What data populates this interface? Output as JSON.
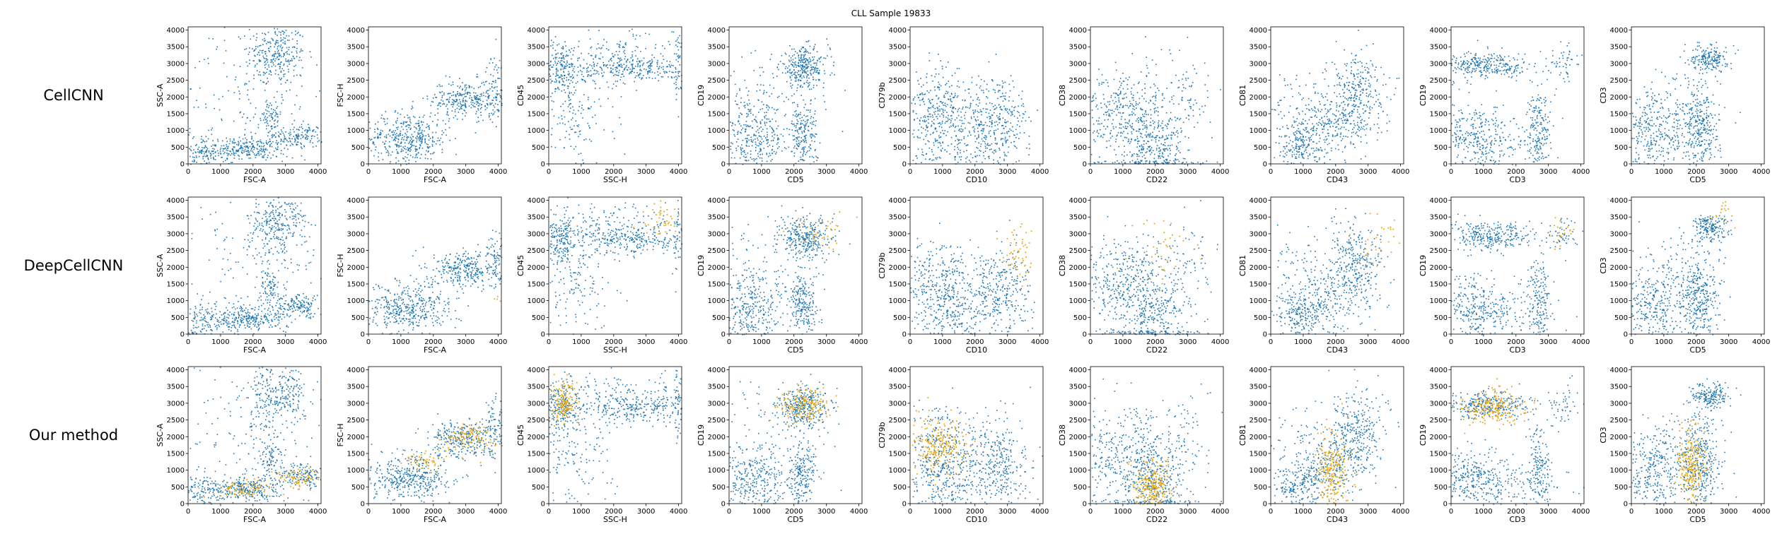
{
  "figure": {
    "title": "CLL Sample 19833",
    "row_labels": [
      "CellCNN",
      "DeepCellCNN",
      "Our method"
    ],
    "colors": {
      "background_cells": "#1f77b4",
      "selected_cells": "#e6a817"
    }
  },
  "chart_data": {
    "type": "scatter",
    "title": "CLL Sample 19833",
    "rows": [
      "CellCNN",
      "DeepCellCNN",
      "Our method"
    ],
    "axis_range": [
      0,
      4096
    ],
    "tick_values": [
      0,
      500,
      1000,
      1500,
      2000,
      2500,
      3000,
      3500,
      4000
    ],
    "x_tick_values": [
      0,
      1000,
      2000,
      3000,
      4000
    ],
    "y_tick_labels": [
      "0",
      "500",
      "1000",
      "1500",
      "2000",
      "2500",
      "3000",
      "3500",
      "4000"
    ],
    "x_tick_labels": [
      "0",
      "1000",
      "2000",
      "3000",
      "4000"
    ],
    "grid": false,
    "panels": [
      {
        "xlabel": "FSC-A",
        "ylabel": "SSC-A",
        "clusters": [
          {
            "x": 2700,
            "y": 3300,
            "sx": 450,
            "sy": 450,
            "n": 260
          },
          {
            "x": 1800,
            "y": 450,
            "sx": 600,
            "sy": 170,
            "n": 260
          },
          {
            "x": 3400,
            "y": 850,
            "sx": 400,
            "sy": 170,
            "n": 150
          },
          {
            "x": 2500,
            "y": 1350,
            "sx": 180,
            "sy": 300,
            "n": 70
          },
          {
            "x": 400,
            "y": 350,
            "sx": 350,
            "sy": 300,
            "n": 130
          },
          {
            "x": 2000,
            "y": 2200,
            "sx": 1100,
            "sy": 1100,
            "n": 160
          }
        ],
        "selected": [
          {
            "row": 2,
            "x": 1700,
            "y": 480,
            "sx": 450,
            "sy": 120,
            "n": 90
          },
          {
            "row": 2,
            "x": 3300,
            "y": 800,
            "sx": 350,
            "sy": 150,
            "n": 70
          }
        ]
      },
      {
        "xlabel": "FSC-A",
        "ylabel": "FSC-H",
        "clusters": [
          {
            "x": 1200,
            "y": 780,
            "sx": 650,
            "sy": 380,
            "n": 420
          },
          {
            "x": 3000,
            "y": 1950,
            "sx": 550,
            "sy": 280,
            "n": 300
          },
          {
            "x": 3900,
            "y": 2300,
            "sx": 150,
            "sy": 500,
            "n": 70
          }
        ],
        "selected": [
          {
            "row": 1,
            "x": 3950,
            "y": 1050,
            "sx": 60,
            "sy": 60,
            "n": 4
          },
          {
            "row": 2,
            "x": 1700,
            "y": 1300,
            "sx": 300,
            "sy": 150,
            "n": 50
          },
          {
            "row": 2,
            "x": 3100,
            "y": 1950,
            "sx": 450,
            "sy": 200,
            "n": 110
          }
        ]
      },
      {
        "xlabel": "SSC-H",
        "ylabel": "CD45",
        "clusters": [
          {
            "x": 2600,
            "y": 2850,
            "sx": 1000,
            "sy": 220,
            "n": 300
          },
          {
            "x": 350,
            "y": 2900,
            "sx": 250,
            "sy": 420,
            "n": 180
          },
          {
            "x": 800,
            "y": 1500,
            "sx": 600,
            "sy": 900,
            "n": 160
          },
          {
            "x": 2000,
            "y": 3400,
            "sx": 900,
            "sy": 300,
            "n": 100
          },
          {
            "x": 3950,
            "y": 2900,
            "sx": 60,
            "sy": 600,
            "n": 40
          }
        ],
        "selected": [
          {
            "row": 1,
            "x": 3500,
            "y": 3500,
            "sx": 350,
            "sy": 250,
            "n": 40
          },
          {
            "row": 2,
            "x": 450,
            "y": 3050,
            "sx": 200,
            "sy": 350,
            "n": 140
          }
        ]
      },
      {
        "xlabel": "CD5",
        "ylabel": "CD19",
        "clusters": [
          {
            "x": 2300,
            "y": 2900,
            "sx": 380,
            "sy": 300,
            "n": 300
          },
          {
            "x": 650,
            "y": 750,
            "sx": 550,
            "sy": 550,
            "n": 330
          },
          {
            "x": 2250,
            "y": 850,
            "sx": 230,
            "sy": 550,
            "n": 220
          },
          {
            "x": 1200,
            "y": 2000,
            "sx": 900,
            "sy": 900,
            "n": 100
          }
        ],
        "selected": [
          {
            "row": 1,
            "x": 2700,
            "y": 3100,
            "sx": 450,
            "sy": 300,
            "n": 40
          },
          {
            "row": 2,
            "x": 2300,
            "y": 2950,
            "sx": 350,
            "sy": 250,
            "n": 170
          }
        ]
      },
      {
        "xlabel": "CD10",
        "ylabel": "CD79b",
        "clusters": [
          {
            "x": 950,
            "y": 1400,
            "sx": 600,
            "sy": 700,
            "n": 420
          },
          {
            "x": 2700,
            "y": 1300,
            "sx": 500,
            "sy": 650,
            "n": 300
          },
          {
            "x": 1800,
            "y": 400,
            "sx": 800,
            "sy": 400,
            "n": 100
          }
        ],
        "selected": [
          {
            "row": 1,
            "x": 3300,
            "y": 2300,
            "sx": 250,
            "sy": 400,
            "n": 55
          },
          {
            "row": 2,
            "x": 900,
            "y": 1700,
            "sx": 400,
            "sy": 450,
            "n": 220
          }
        ]
      },
      {
        "xlabel": "CD22",
        "ylabel": "CD38",
        "clusters": [
          {
            "x": 1100,
            "y": 1500,
            "sx": 800,
            "sy": 700,
            "n": 450
          },
          {
            "x": 2000,
            "y": 550,
            "sx": 450,
            "sy": 500,
            "n": 200
          },
          {
            "x": 3000,
            "y": 2000,
            "sx": 400,
            "sy": 800,
            "n": 70
          },
          {
            "x": 1800,
            "y": 60,
            "sx": 900,
            "sy": 40,
            "n": 90
          }
        ],
        "selected": [
          {
            "row": 1,
            "x": 2300,
            "y": 2400,
            "sx": 500,
            "sy": 500,
            "n": 40
          },
          {
            "row": 2,
            "x": 1900,
            "y": 550,
            "sx": 280,
            "sy": 350,
            "n": 230
          }
        ]
      },
      {
        "xlabel": "CD43",
        "ylabel": "CD81",
        "clusters": [
          {
            "x": 2600,
            "y": 2100,
            "sx": 450,
            "sy": 650,
            "n": 320
          },
          {
            "x": 900,
            "y": 600,
            "sx": 400,
            "sy": 400,
            "n": 220
          },
          {
            "x": 1800,
            "y": 1100,
            "sx": 500,
            "sy": 500,
            "n": 180
          },
          {
            "x": 1000,
            "y": 2000,
            "sx": 500,
            "sy": 500,
            "n": 60
          }
        ],
        "selected": [
          {
            "row": 1,
            "x": 3300,
            "y": 2800,
            "sx": 300,
            "sy": 400,
            "n": 30
          },
          {
            "row": 2,
            "x": 1900,
            "y": 900,
            "sx": 250,
            "sy": 600,
            "n": 230
          }
        ]
      },
      {
        "xlabel": "CD3",
        "ylabel": "CD19",
        "clusters": [
          {
            "x": 1100,
            "y": 2950,
            "sx": 700,
            "sy": 200,
            "n": 300
          },
          {
            "x": 700,
            "y": 800,
            "sx": 550,
            "sy": 500,
            "n": 300
          },
          {
            "x": 2700,
            "y": 1000,
            "sx": 180,
            "sy": 650,
            "n": 170
          },
          {
            "x": 3400,
            "y": 3000,
            "sx": 250,
            "sy": 300,
            "n": 50
          },
          {
            "x": 2000,
            "y": 600,
            "sx": 700,
            "sy": 400,
            "n": 80
          }
        ],
        "selected": [
          {
            "row": 1,
            "x": 3400,
            "y": 3000,
            "sx": 200,
            "sy": 250,
            "n": 20
          },
          {
            "row": 2,
            "x": 1300,
            "y": 2850,
            "sx": 500,
            "sy": 250,
            "n": 200
          }
        ]
      },
      {
        "xlabel": "CD5",
        "ylabel": "CD3",
        "clusters": [
          {
            "x": 2400,
            "y": 3200,
            "sx": 280,
            "sy": 200,
            "n": 180
          },
          {
            "x": 2100,
            "y": 1100,
            "sx": 300,
            "sy": 700,
            "n": 320
          },
          {
            "x": 700,
            "y": 900,
            "sx": 500,
            "sy": 650,
            "n": 300
          },
          {
            "x": 1500,
            "y": 1500,
            "sx": 600,
            "sy": 700,
            "n": 100
          }
        ],
        "selected": [
          {
            "row": 1,
            "x": 2800,
            "y": 3700,
            "sx": 200,
            "sy": 200,
            "n": 20
          },
          {
            "row": 2,
            "x": 1850,
            "y": 1100,
            "sx": 220,
            "sy": 550,
            "n": 230
          }
        ]
      }
    ]
  }
}
